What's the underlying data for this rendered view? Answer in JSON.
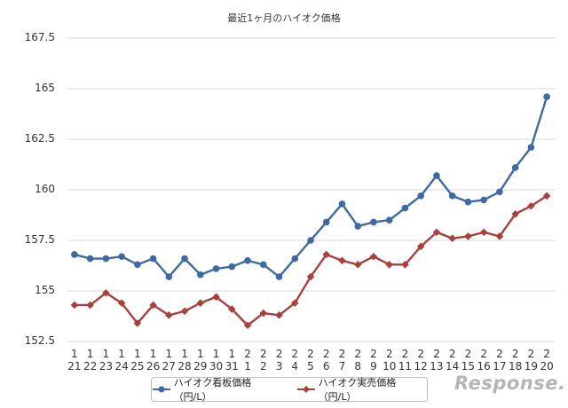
{
  "chart_data": {
    "type": "line",
    "title": "最近1ヶ月のハイオク価格",
    "categories_month": [
      "1",
      "1",
      "1",
      "1",
      "1",
      "1",
      "1",
      "1",
      "1",
      "1",
      "1",
      "2",
      "2",
      "2",
      "2",
      "2",
      "2",
      "2",
      "2",
      "2",
      "2",
      "2",
      "2",
      "2",
      "2",
      "2",
      "2",
      "2",
      "2",
      "2",
      "2"
    ],
    "categories_day": [
      "21",
      "22",
      "23",
      "24",
      "25",
      "26",
      "27",
      "28",
      "29",
      "30",
      "31",
      "1",
      "2",
      "3",
      "4",
      "5",
      "6",
      "7",
      "8",
      "9",
      "10",
      "11",
      "12",
      "13",
      "14",
      "15",
      "16",
      "17",
      "18",
      "19",
      "20"
    ],
    "yticks": [
      "167.5",
      "165",
      "162.5",
      "160",
      "157.5",
      "155",
      "152.5"
    ],
    "ylim": [
      152.5,
      167.5
    ],
    "series": [
      {
        "name": "ハイオク看板価格（円/L）",
        "color": "#3e6aa3",
        "marker": "circle",
        "values": [
          156.8,
          156.6,
          156.6,
          156.7,
          156.3,
          156.6,
          155.7,
          156.6,
          155.8,
          156.1,
          156.2,
          156.5,
          156.3,
          155.7,
          156.6,
          157.5,
          158.4,
          159.3,
          158.2,
          158.4,
          158.5,
          159.1,
          159.7,
          160.7,
          159.7,
          159.4,
          159.5,
          159.9,
          161.1,
          162.1,
          164.6
        ]
      },
      {
        "name": "ハイオク実売価格（円/L）",
        "color": "#a8403b",
        "marker": "diamond",
        "values": [
          154.3,
          154.3,
          154.9,
          154.4,
          153.4,
          154.3,
          153.8,
          154.0,
          154.4,
          154.7,
          154.1,
          153.3,
          153.9,
          153.8,
          154.4,
          155.7,
          156.8,
          156.5,
          156.3,
          156.7,
          156.3,
          156.3,
          157.2,
          157.9,
          157.6,
          157.7,
          157.9,
          157.7,
          158.8,
          159.2,
          159.7
        ]
      }
    ],
    "grid": true,
    "legend": "bottom-center"
  },
  "watermark": "Response."
}
